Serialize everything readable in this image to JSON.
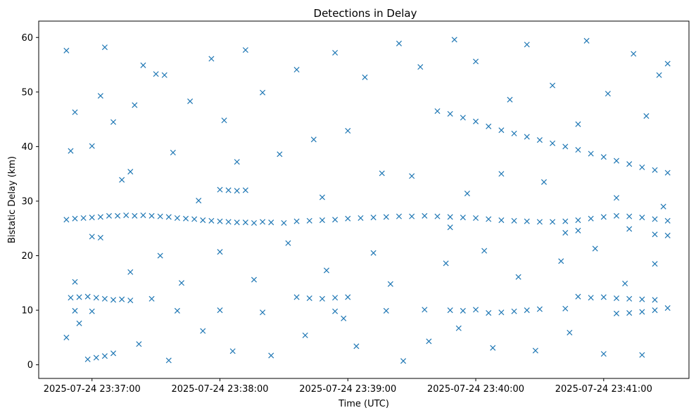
{
  "chart_data": {
    "type": "scatter",
    "title": "Detections in Delay",
    "xlabel": "Time (UTC)",
    "ylabel": "Bistatic Delay (km)",
    "xlim": [
      "2025-07-24 23:36:35",
      "2025-07-24 23:41:40"
    ],
    "ylim": [
      -2.5,
      63
    ],
    "xticks": [
      {
        "t": "2025-07-24 23:37:00",
        "label": "2025-07-24 23:37:00"
      },
      {
        "t": "2025-07-24 23:38:00",
        "label": "2025-07-24 23:38:00"
      },
      {
        "t": "2025-07-24 23:39:00",
        "label": "2025-07-24 23:39:00"
      },
      {
        "t": "2025-07-24 23:40:00",
        "label": "2025-07-24 23:40:00"
      },
      {
        "t": "2025-07-24 23:41:00",
        "label": "2025-07-24 23:41:00"
      }
    ],
    "yticks": [
      0,
      10,
      20,
      30,
      40,
      50,
      60
    ],
    "marker": "x",
    "color": "#1f77b4",
    "grid": false,
    "series": [
      {
        "name": "",
        "points": [
          [
            "2025-07-24 23:36:48",
            26.6
          ],
          [
            "2025-07-24 23:36:52",
            26.8
          ],
          [
            "2025-07-24 23:36:56",
            26.9
          ],
          [
            "2025-07-24 23:37:00",
            27.0
          ],
          [
            "2025-07-24 23:37:04",
            27.1
          ],
          [
            "2025-07-24 23:37:08",
            27.3
          ],
          [
            "2025-07-24 23:37:12",
            27.3
          ],
          [
            "2025-07-24 23:37:16",
            27.4
          ],
          [
            "2025-07-24 23:37:20",
            27.3
          ],
          [
            "2025-07-24 23:37:24",
            27.4
          ],
          [
            "2025-07-24 23:37:28",
            27.3
          ],
          [
            "2025-07-24 23:37:32",
            27.2
          ],
          [
            "2025-07-24 23:37:36",
            27.1
          ],
          [
            "2025-07-24 23:37:40",
            26.9
          ],
          [
            "2025-07-24 23:37:44",
            26.8
          ],
          [
            "2025-07-24 23:37:48",
            26.7
          ],
          [
            "2025-07-24 23:37:52",
            26.5
          ],
          [
            "2025-07-24 23:37:56",
            26.4
          ],
          [
            "2025-07-24 23:38:00",
            26.3
          ],
          [
            "2025-07-24 23:38:04",
            26.2
          ],
          [
            "2025-07-24 23:38:08",
            26.1
          ],
          [
            "2025-07-24 23:38:12",
            26.1
          ],
          [
            "2025-07-24 23:38:16",
            26.0
          ],
          [
            "2025-07-24 23:38:20",
            26.2
          ],
          [
            "2025-07-24 23:38:24",
            26.1
          ],
          [
            "2025-07-24 23:38:30",
            26.0
          ],
          [
            "2025-07-24 23:38:36",
            26.3
          ],
          [
            "2025-07-24 23:38:42",
            26.4
          ],
          [
            "2025-07-24 23:38:48",
            26.5
          ],
          [
            "2025-07-24 23:38:54",
            26.6
          ],
          [
            "2025-07-24 23:39:00",
            26.8
          ],
          [
            "2025-07-24 23:39:06",
            26.9
          ],
          [
            "2025-07-24 23:39:12",
            27.0
          ],
          [
            "2025-07-24 23:39:18",
            27.1
          ],
          [
            "2025-07-24 23:39:24",
            27.2
          ],
          [
            "2025-07-24 23:39:30",
            27.2
          ],
          [
            "2025-07-24 23:39:36",
            27.3
          ],
          [
            "2025-07-24 23:39:42",
            27.2
          ],
          [
            "2025-07-24 23:39:48",
            27.1
          ],
          [
            "2025-07-24 23:39:54",
            27.0
          ],
          [
            "2025-07-24 23:40:00",
            26.9
          ],
          [
            "2025-07-24 23:40:06",
            26.7
          ],
          [
            "2025-07-24 23:40:12",
            26.5
          ],
          [
            "2025-07-24 23:40:18",
            26.4
          ],
          [
            "2025-07-24 23:40:24",
            26.3
          ],
          [
            "2025-07-24 23:40:30",
            26.2
          ],
          [
            "2025-07-24 23:40:36",
            26.2
          ],
          [
            "2025-07-24 23:40:42",
            26.3
          ],
          [
            "2025-07-24 23:40:48",
            26.5
          ],
          [
            "2025-07-24 23:40:54",
            26.8
          ],
          [
            "2025-07-24 23:41:00",
            27.1
          ],
          [
            "2025-07-24 23:41:06",
            27.3
          ],
          [
            "2025-07-24 23:41:12",
            27.2
          ],
          [
            "2025-07-24 23:41:18",
            27.0
          ],
          [
            "2025-07-24 23:41:24",
            26.7
          ],
          [
            "2025-07-24 23:41:30",
            26.4
          ],
          [
            "2025-07-24 23:36:50",
            12.3
          ],
          [
            "2025-07-24 23:36:54",
            12.4
          ],
          [
            "2025-07-24 23:36:58",
            12.5
          ],
          [
            "2025-07-24 23:37:02",
            12.3
          ],
          [
            "2025-07-24 23:37:06",
            12.1
          ],
          [
            "2025-07-24 23:37:10",
            11.9
          ],
          [
            "2025-07-24 23:37:14",
            12.0
          ],
          [
            "2025-07-24 23:37:18",
            11.8
          ],
          [
            "2025-07-24 23:38:36",
            12.4
          ],
          [
            "2025-07-24 23:38:42",
            12.2
          ],
          [
            "2025-07-24 23:38:48",
            12.1
          ],
          [
            "2025-07-24 23:38:54",
            12.3
          ],
          [
            "2025-07-24 23:39:00",
            12.4
          ],
          [
            "2025-07-24 23:40:48",
            12.5
          ],
          [
            "2025-07-24 23:40:54",
            12.3
          ],
          [
            "2025-07-24 23:41:00",
            12.4
          ],
          [
            "2025-07-24 23:41:06",
            12.2
          ],
          [
            "2025-07-24 23:41:12",
            12.1
          ],
          [
            "2025-07-24 23:41:18",
            12.0
          ],
          [
            "2025-07-24 23:41:24",
            11.9
          ],
          [
            "2025-07-24 23:36:52",
            9.9
          ],
          [
            "2025-07-24 23:37:00",
            9.8
          ],
          [
            "2025-07-24 23:37:40",
            9.9
          ],
          [
            "2025-07-24 23:38:00",
            10.0
          ],
          [
            "2025-07-24 23:38:20",
            9.6
          ],
          [
            "2025-07-24 23:38:54",
            9.8
          ],
          [
            "2025-07-24 23:39:18",
            9.9
          ],
          [
            "2025-07-24 23:39:36",
            10.1
          ],
          [
            "2025-07-24 23:39:48",
            10.0
          ],
          [
            "2025-07-24 23:39:54",
            9.9
          ],
          [
            "2025-07-24 23:40:00",
            10.1
          ],
          [
            "2025-07-24 23:40:06",
            9.5
          ],
          [
            "2025-07-24 23:40:12",
            9.6
          ],
          [
            "2025-07-24 23:40:18",
            9.8
          ],
          [
            "2025-07-24 23:40:24",
            10.0
          ],
          [
            "2025-07-24 23:40:30",
            10.2
          ],
          [
            "2025-07-24 23:40:42",
            10.3
          ],
          [
            "2025-07-24 23:41:06",
            9.4
          ],
          [
            "2025-07-24 23:41:12",
            9.5
          ],
          [
            "2025-07-24 23:41:18",
            9.7
          ],
          [
            "2025-07-24 23:41:24",
            10.0
          ],
          [
            "2025-07-24 23:41:30",
            10.4
          ],
          [
            "2025-07-24 23:38:00",
            32.1
          ],
          [
            "2025-07-24 23:38:04",
            32.0
          ],
          [
            "2025-07-24 23:38:08",
            31.9
          ],
          [
            "2025-07-24 23:38:12",
            32.0
          ],
          [
            "2025-07-24 23:36:58",
            1.0
          ],
          [
            "2025-07-24 23:37:02",
            1.3
          ],
          [
            "2025-07-24 23:37:06",
            1.6
          ],
          [
            "2025-07-24 23:37:10",
            2.1
          ],
          [
            "2025-07-24 23:37:00",
            23.5
          ],
          [
            "2025-07-24 23:37:04",
            23.3
          ],
          [
            "2025-07-24 23:39:48",
            25.2
          ],
          [
            "2025-07-24 23:40:42",
            24.2
          ],
          [
            "2025-07-24 23:40:48",
            24.6
          ],
          [
            "2025-07-24 23:41:12",
            24.9
          ],
          [
            "2025-07-24 23:41:24",
            23.9
          ],
          [
            "2025-07-24 23:41:30",
            23.7
          ],
          [
            "2025-07-24 23:39:48",
            46.0
          ],
          [
            "2025-07-24 23:39:54",
            45.3
          ],
          [
            "2025-07-24 23:40:00",
            44.6
          ],
          [
            "2025-07-24 23:40:06",
            43.7
          ],
          [
            "2025-07-24 23:40:12",
            43.0
          ],
          [
            "2025-07-24 23:40:18",
            42.4
          ],
          [
            "2025-07-24 23:40:24",
            41.8
          ],
          [
            "2025-07-24 23:40:30",
            41.2
          ],
          [
            "2025-07-24 23:40:36",
            40.6
          ],
          [
            "2025-07-24 23:40:42",
            40.0
          ],
          [
            "2025-07-24 23:40:48",
            39.4
          ],
          [
            "2025-07-24 23:40:54",
            38.7
          ],
          [
            "2025-07-24 23:41:00",
            38.1
          ],
          [
            "2025-07-24 23:41:06",
            37.4
          ],
          [
            "2025-07-24 23:41:12",
            36.8
          ],
          [
            "2025-07-24 23:41:18",
            36.2
          ],
          [
            "2025-07-24 23:41:24",
            35.7
          ],
          [
            "2025-07-24 23:41:30",
            35.2
          ],
          [
            "2025-07-24 23:37:30",
            53.3
          ],
          [
            "2025-07-24 23:37:34",
            53.1
          ],
          [
            "2025-07-24 23:36:48",
            57.6
          ],
          [
            "2025-07-24 23:36:52",
            46.3
          ],
          [
            "2025-07-24 23:36:50",
            39.2
          ],
          [
            "2025-07-24 23:36:52",
            15.2
          ],
          [
            "2025-07-24 23:36:48",
            5.0
          ],
          [
            "2025-07-24 23:36:54",
            7.6
          ],
          [
            "2025-07-24 23:37:00",
            40.1
          ],
          [
            "2025-07-24 23:37:04",
            49.3
          ],
          [
            "2025-07-24 23:37:06",
            58.2
          ],
          [
            "2025-07-24 23:37:10",
            44.5
          ],
          [
            "2025-07-24 23:37:14",
            33.9
          ],
          [
            "2025-07-24 23:37:18",
            35.4
          ],
          [
            "2025-07-24 23:37:18",
            17.0
          ],
          [
            "2025-07-24 23:37:20",
            47.6
          ],
          [
            "2025-07-24 23:37:22",
            3.8
          ],
          [
            "2025-07-24 23:37:24",
            54.9
          ],
          [
            "2025-07-24 23:37:28",
            12.1
          ],
          [
            "2025-07-24 23:37:32",
            20.0
          ],
          [
            "2025-07-24 23:37:36",
            0.8
          ],
          [
            "2025-07-24 23:37:38",
            38.9
          ],
          [
            "2025-07-24 23:37:42",
            15.0
          ],
          [
            "2025-07-24 23:37:46",
            48.3
          ],
          [
            "2025-07-24 23:37:50",
            30.1
          ],
          [
            "2025-07-24 23:37:52",
            6.2
          ],
          [
            "2025-07-24 23:37:56",
            56.1
          ],
          [
            "2025-07-24 23:38:00",
            20.7
          ],
          [
            "2025-07-24 23:38:02",
            44.8
          ],
          [
            "2025-07-24 23:38:06",
            2.5
          ],
          [
            "2025-07-24 23:38:08",
            37.2
          ],
          [
            "2025-07-24 23:38:12",
            57.7
          ],
          [
            "2025-07-24 23:38:16",
            15.6
          ],
          [
            "2025-07-24 23:38:20",
            49.9
          ],
          [
            "2025-07-24 23:38:24",
            1.7
          ],
          [
            "2025-07-24 23:38:28",
            38.6
          ],
          [
            "2025-07-24 23:38:32",
            22.3
          ],
          [
            "2025-07-24 23:38:36",
            54.1
          ],
          [
            "2025-07-24 23:38:40",
            5.4
          ],
          [
            "2025-07-24 23:38:44",
            41.3
          ],
          [
            "2025-07-24 23:38:48",
            30.7
          ],
          [
            "2025-07-24 23:38:50",
            17.3
          ],
          [
            "2025-07-24 23:38:54",
            57.2
          ],
          [
            "2025-07-24 23:38:58",
            8.5
          ],
          [
            "2025-07-24 23:39:00",
            42.9
          ],
          [
            "2025-07-24 23:39:04",
            3.4
          ],
          [
            "2025-07-24 23:39:08",
            52.7
          ],
          [
            "2025-07-24 23:39:12",
            20.5
          ],
          [
            "2025-07-24 23:39:16",
            35.1
          ],
          [
            "2025-07-24 23:39:20",
            14.8
          ],
          [
            "2025-07-24 23:39:24",
            58.9
          ],
          [
            "2025-07-24 23:39:26",
            0.7
          ],
          [
            "2025-07-24 23:39:30",
            34.6
          ],
          [
            "2025-07-24 23:39:34",
            54.6
          ],
          [
            "2025-07-24 23:39:38",
            4.3
          ],
          [
            "2025-07-24 23:39:42",
            46.5
          ],
          [
            "2025-07-24 23:39:46",
            18.6
          ],
          [
            "2025-07-24 23:39:50",
            59.6
          ],
          [
            "2025-07-24 23:39:52",
            6.7
          ],
          [
            "2025-07-24 23:39:56",
            31.4
          ],
          [
            "2025-07-24 23:40:00",
            55.6
          ],
          [
            "2025-07-24 23:40:04",
            20.9
          ],
          [
            "2025-07-24 23:40:08",
            3.1
          ],
          [
            "2025-07-24 23:40:12",
            35.0
          ],
          [
            "2025-07-24 23:40:16",
            48.6
          ],
          [
            "2025-07-24 23:40:20",
            16.1
          ],
          [
            "2025-07-24 23:40:24",
            58.7
          ],
          [
            "2025-07-24 23:40:28",
            2.6
          ],
          [
            "2025-07-24 23:40:32",
            33.5
          ],
          [
            "2025-07-24 23:40:36",
            51.2
          ],
          [
            "2025-07-24 23:40:40",
            19.0
          ],
          [
            "2025-07-24 23:40:44",
            5.9
          ],
          [
            "2025-07-24 23:40:48",
            44.1
          ],
          [
            "2025-07-24 23:40:52",
            59.4
          ],
          [
            "2025-07-24 23:40:56",
            21.3
          ],
          [
            "2025-07-24 23:41:00",
            2.0
          ],
          [
            "2025-07-24 23:41:02",
            49.7
          ],
          [
            "2025-07-24 23:41:06",
            30.6
          ],
          [
            "2025-07-24 23:41:10",
            14.9
          ],
          [
            "2025-07-24 23:41:14",
            57.0
          ],
          [
            "2025-07-24 23:41:18",
            1.8
          ],
          [
            "2025-07-24 23:41:20",
            45.6
          ],
          [
            "2025-07-24 23:41:24",
            18.5
          ],
          [
            "2025-07-24 23:41:26",
            53.1
          ],
          [
            "2025-07-24 23:41:28",
            29.0
          ],
          [
            "2025-07-24 23:41:30",
            55.2
          ]
        ]
      }
    ]
  }
}
